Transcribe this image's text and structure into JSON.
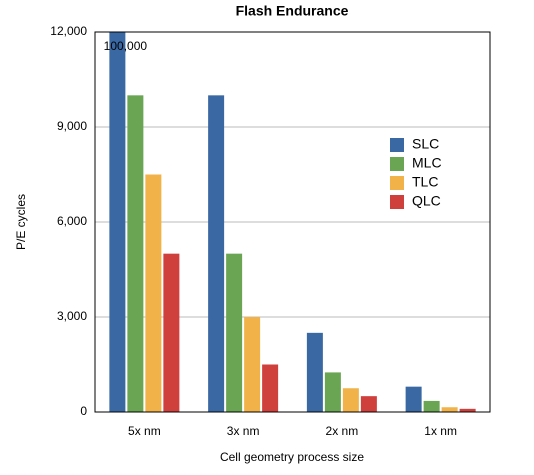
{
  "chart_data": {
    "type": "bar",
    "title": "Flash Endurance",
    "x_label": "Cell geometry process size",
    "y_label": "P/E cycles",
    "categories": [
      "5x nm",
      "3x nm",
      "2x nm",
      "1x nm"
    ],
    "series": [
      {
        "name": "SLC",
        "color": "#3a68a3",
        "values": [
          100000,
          10000,
          2500,
          800
        ],
        "value_labels": [
          "100,000",
          null,
          null,
          null
        ]
      },
      {
        "name": "MLC",
        "color": "#69a553",
        "values": [
          10000,
          5000,
          1250,
          350
        ]
      },
      {
        "name": "TLC",
        "color": "#f1b24a",
        "values": [
          7500,
          3000,
          750,
          150
        ]
      },
      {
        "name": "QLC",
        "color": "#cf3f3c",
        "values": [
          5000,
          1500,
          500,
          100
        ]
      }
    ],
    "ylim": [
      0,
      12000
    ],
    "yticks": [
      0,
      {
        "value": 3000,
        "label": "3,000"
      },
      {
        "value": 6000,
        "label": "6,000"
      },
      {
        "value": 9000,
        "label": "9,000"
      },
      {
        "value": 12000,
        "label": "12,000"
      }
    ],
    "grid": true,
    "legend": "right"
  }
}
